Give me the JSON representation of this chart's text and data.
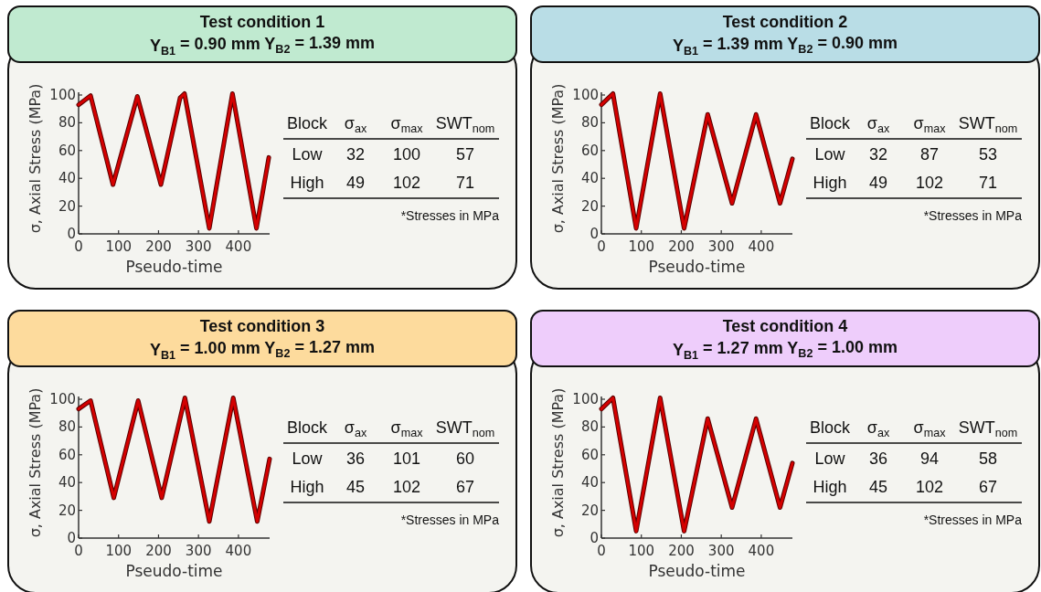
{
  "chart_data": [
    {
      "type": "line",
      "title": "Test condition 1",
      "subtitle": "Y$_{B1}$ = 0.90 mm Y$_{B2}$ = 1.39 mm",
      "xlabel": "Pseudo-time",
      "ylabel": "σ, Axial Stress (MPa)",
      "xlim": [
        0,
        478
      ],
      "ylim": [
        0,
        102
      ],
      "xticks": [
        0,
        100,
        200,
        300,
        400
      ],
      "yticks": [
        0,
        20,
        40,
        60,
        80,
        100
      ],
      "marker": "none",
      "line_style": "solid",
      "series": [
        {
          "color": "#d40000",
          "x": [
            0,
            30,
            86,
            147,
            206,
            254,
            265,
            327,
            385,
            445,
            476
          ],
          "values": [
            93,
            99.5,
            35.5,
            99,
            35.5,
            98,
            101,
            4,
            101,
            4,
            55
          ]
        }
      ]
    },
    {
      "type": "other",
      "annotations": [
        "Block",
        "σ$_{ax}$",
        "σ$_{max}$",
        "SWT$_{nom}$",
        "Low",
        "32",
        "100",
        "57",
        "High",
        "49",
        "102",
        "71",
        "*Stresses in MPa"
      ]
    },
    {
      "type": "line",
      "title": "Test condition 2",
      "subtitle": "Y$_{B1}$ = 1.39 mm Y$_{B2}$ = 0.90 mm",
      "xlabel": "Pseudo-time",
      "ylabel": "σ, Axial Stress (MPa)",
      "xlim": [
        0,
        478
      ],
      "ylim": [
        0,
        102
      ],
      "xticks": [
        0,
        100,
        200,
        300,
        400
      ],
      "yticks": [
        0,
        20,
        40,
        60,
        80,
        100
      ],
      "marker": "none",
      "line_style": "solid",
      "series": [
        {
          "color": "#d40000",
          "x": [
            0,
            29,
            87,
            147,
            207,
            266,
            327,
            387,
            447,
            478
          ],
          "values": [
            93,
            101,
            4,
            101,
            4,
            86,
            22,
            86,
            22,
            54
          ]
        }
      ]
    },
    {
      "type": "other",
      "annotations": [
        "Block",
        "σ$_{ax}$",
        "σ$_{max}$",
        "SWT$_{nom}$",
        "Low",
        "32",
        "87",
        "53",
        "High",
        "49",
        "102",
        "71",
        "*Stresses in MPa"
      ]
    },
    {
      "type": "line",
      "title": "Test condition 3",
      "subtitle": "Y$_{B1}$ = 1.00 mm Y$_{B2}$ = 1.27 mm",
      "xlabel": "Pseudo-time",
      "ylabel": "σ, Axial Stress (MPa)",
      "xlim": [
        0,
        478
      ],
      "ylim": [
        0,
        102
      ],
      "xticks": [
        0,
        100,
        200,
        300,
        400
      ],
      "yticks": [
        0,
        20,
        40,
        60,
        80,
        100
      ],
      "marker": "none",
      "line_style": "solid",
      "series": [
        {
          "color": "#d40000",
          "x": [
            0,
            30,
            88,
            149,
            208,
            266,
            327,
            387,
            447,
            478
          ],
          "values": [
            93,
            99,
            29,
            99,
            29,
            101,
            12,
            101,
            12,
            57
          ]
        }
      ]
    },
    {
      "type": "other",
      "annotations": [
        "Block",
        "σ$_{ax}$",
        "σ$_{max}$",
        "SWT$_{nom}$",
        "Low",
        "36",
        "101",
        "60",
        "High",
        "45",
        "102",
        "67",
        "*Stresses in MPa"
      ]
    },
    {
      "type": "line",
      "title": "Test condition 4",
      "subtitle": "Y$_{B1}$ = 1.27 mm Y$_{B2}$ = 1.00 mm",
      "xlabel": "Pseudo-time",
      "ylabel": "σ, Axial Stress (MPa)",
      "xlim": [
        0,
        478
      ],
      "ylim": [
        0,
        102
      ],
      "xticks": [
        0,
        100,
        200,
        300,
        400
      ],
      "yticks": [
        0,
        20,
        40,
        60,
        80,
        100
      ],
      "marker": "none",
      "line_style": "solid",
      "series": [
        {
          "color": "#d40000",
          "x": [
            0,
            29,
            87,
            147,
            207,
            266,
            327,
            387,
            447,
            478
          ],
          "values": [
            93,
            101,
            5,
            101,
            5,
            86,
            22,
            86,
            22,
            54
          ]
        }
      ]
    },
    {
      "type": "other",
      "annotations": [
        "Block",
        "σ$_{ax}$",
        "σ$_{max}$",
        "SWT$_{nom}$",
        "Low",
        "36",
        "94",
        "58",
        "High",
        "45",
        "102",
        "67",
        "*Stresses in MPa"
      ]
    }
  ]
}
